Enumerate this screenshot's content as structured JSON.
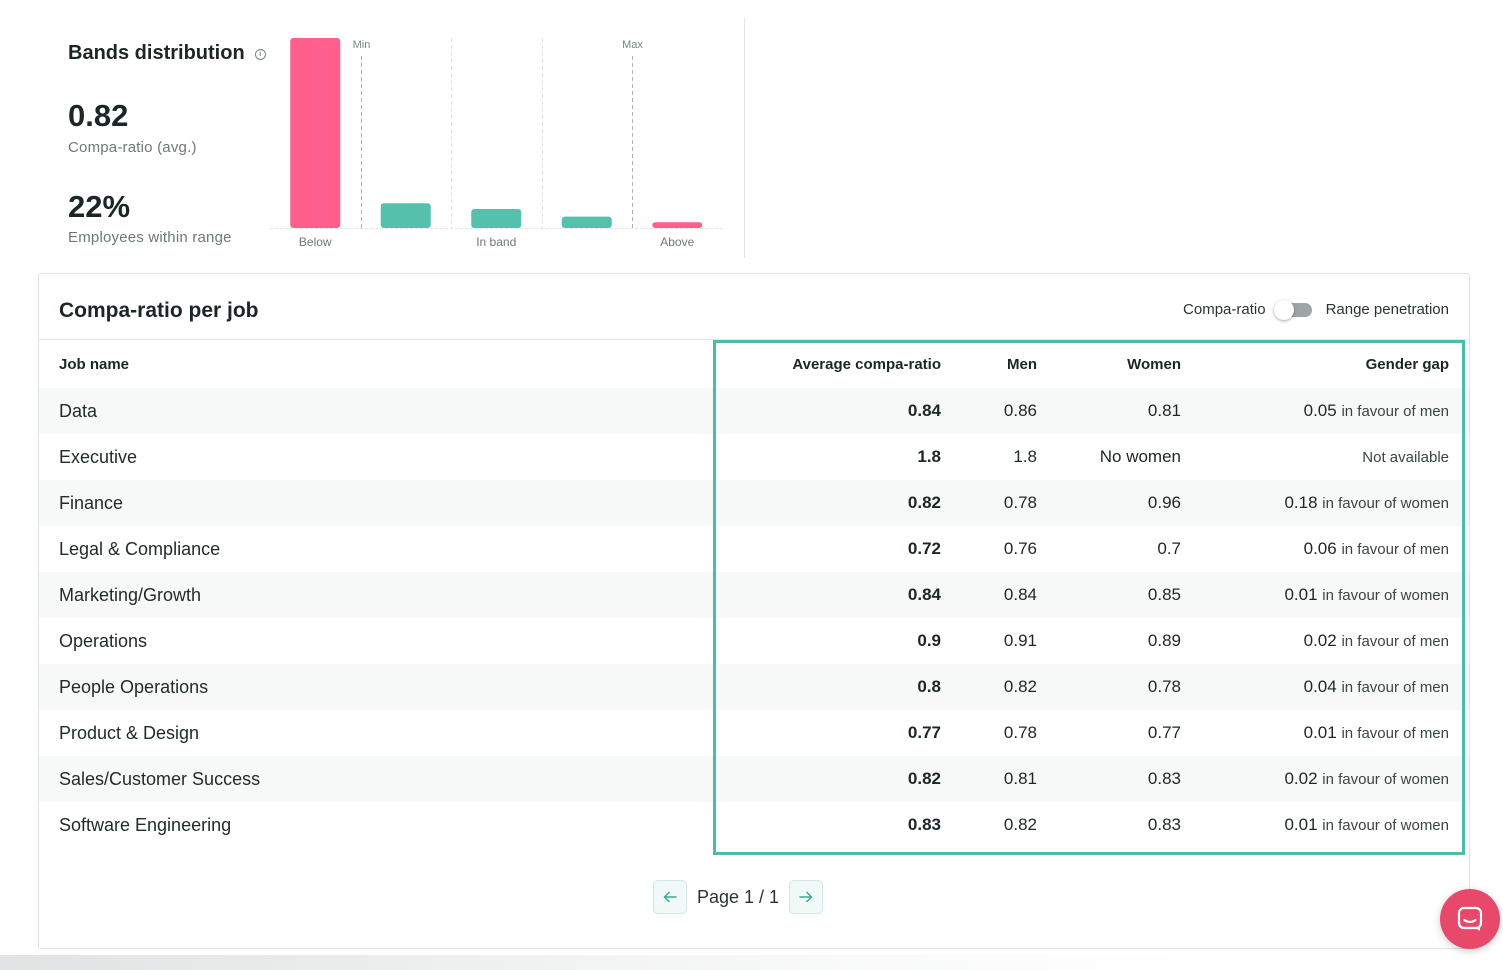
{
  "bands": {
    "title": "Bands distribution",
    "compa_ratio_avg_value": "0.82",
    "compa_ratio_avg_label": "Compa-ratio (avg.)",
    "within_range_value": "22%",
    "within_range_label": "Employees within range",
    "colors": {
      "below_above": "#ff5f8c",
      "in_band": "#55c1ad"
    }
  },
  "chart_data": {
    "type": "bar",
    "categories": [
      "Below",
      "",
      "In band",
      "",
      "Above"
    ],
    "values": [
      100,
      13,
      10,
      6,
      3
    ],
    "colors": [
      "#ff5f8c",
      "#55c1ad",
      "#55c1ad",
      "#55c1ad",
      "#ff5f8c"
    ],
    "markers": [
      {
        "label": "Min",
        "between": [
          0,
          1
        ]
      },
      {
        "label": "Max",
        "between": [
          3,
          4
        ]
      }
    ],
    "grid": "dashed vertical separators",
    "ylim": [
      0,
      100
    ]
  },
  "card": {
    "title": "Compa-ratio per job",
    "toggle_left_label": "Compa-ratio",
    "toggle_right_label": "Range penetration",
    "toggle_state": "off"
  },
  "table": {
    "headers": {
      "name": "Job name",
      "avg": "Average compa-ratio",
      "men": "Men",
      "women": "Women",
      "gap": "Gender gap"
    },
    "rows": [
      {
        "name": "Data",
        "avg": "0.84",
        "men": "0.86",
        "women": "0.81",
        "gap_value": "0.05",
        "gap_text": "in favour of men"
      },
      {
        "name": "Executive",
        "avg": "1.8",
        "men": "1.8",
        "women": "No women",
        "gap_value": "",
        "gap_text": "Not available"
      },
      {
        "name": "Finance",
        "avg": "0.82",
        "men": "0.78",
        "women": "0.96",
        "gap_value": "0.18",
        "gap_text": "in favour of women"
      },
      {
        "name": "Legal & Compliance",
        "avg": "0.72",
        "men": "0.76",
        "women": "0.7",
        "gap_value": "0.06",
        "gap_text": "in favour of men"
      },
      {
        "name": "Marketing/Growth",
        "avg": "0.84",
        "men": "0.84",
        "women": "0.85",
        "gap_value": "0.01",
        "gap_text": "in favour of women"
      },
      {
        "name": "Operations",
        "avg": "0.9",
        "men": "0.91",
        "women": "0.89",
        "gap_value": "0.02",
        "gap_text": "in favour of men"
      },
      {
        "name": "People Operations",
        "avg": "0.8",
        "men": "0.82",
        "women": "0.78",
        "gap_value": "0.04",
        "gap_text": "in favour of men"
      },
      {
        "name": "Product & Design",
        "avg": "0.77",
        "men": "0.78",
        "women": "0.77",
        "gap_value": "0.01",
        "gap_text": "in favour of men"
      },
      {
        "name": "Sales/Customer Success",
        "avg": "0.82",
        "men": "0.81",
        "women": "0.83",
        "gap_value": "0.02",
        "gap_text": "in favour of women"
      },
      {
        "name": "Software Engineering",
        "avg": "0.83",
        "men": "0.82",
        "women": "0.83",
        "gap_value": "0.01",
        "gap_text": "in favour of women"
      }
    ]
  },
  "pagination": {
    "page_label": "Page 1 / 1",
    "prev_icon": "arrow-left-icon",
    "next_icon": "arrow-right-icon"
  },
  "chat": {
    "icon": "chat-bubble-icon",
    "color": "#e8496b"
  }
}
